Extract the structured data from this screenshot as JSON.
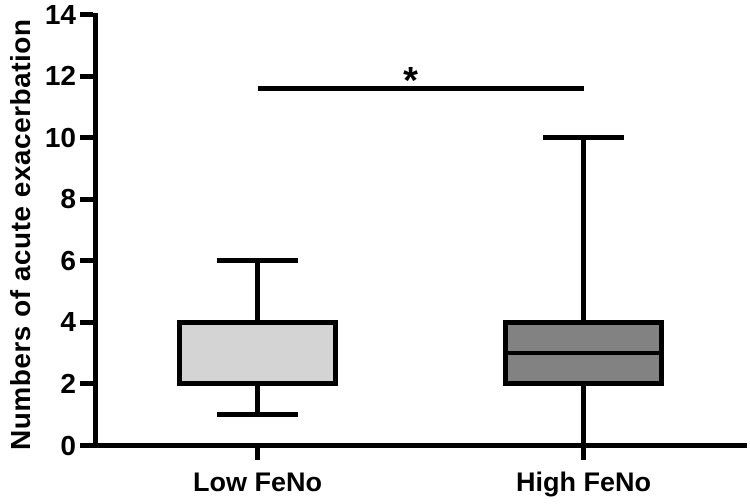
{
  "chart_data": {
    "type": "box",
    "title": "",
    "ylabel": "Numbers of acute exacerbation",
    "xlabel": "",
    "ylim": [
      0,
      14
    ],
    "yticks": [
      0,
      2,
      4,
      6,
      8,
      10,
      12,
      14
    ],
    "categories": [
      "Low FeNo",
      "High FeNo"
    ],
    "series": [
      {
        "name": "Low FeNo",
        "min": 1,
        "q1": 2,
        "median": 2,
        "q3": 4,
        "max": 6,
        "fill": "#d4d4d4"
      },
      {
        "name": "High FeNo",
        "min": 0,
        "q1": 2,
        "median": 3,
        "q3": 4,
        "max": 10,
        "fill": "#828282"
      }
    ],
    "significance": {
      "label": "*",
      "from": "Low FeNo",
      "to": "High FeNo",
      "y": 11.6
    },
    "colors": {
      "line": "#000000",
      "background": "#ffffff"
    },
    "legend": "none",
    "grid": false
  }
}
